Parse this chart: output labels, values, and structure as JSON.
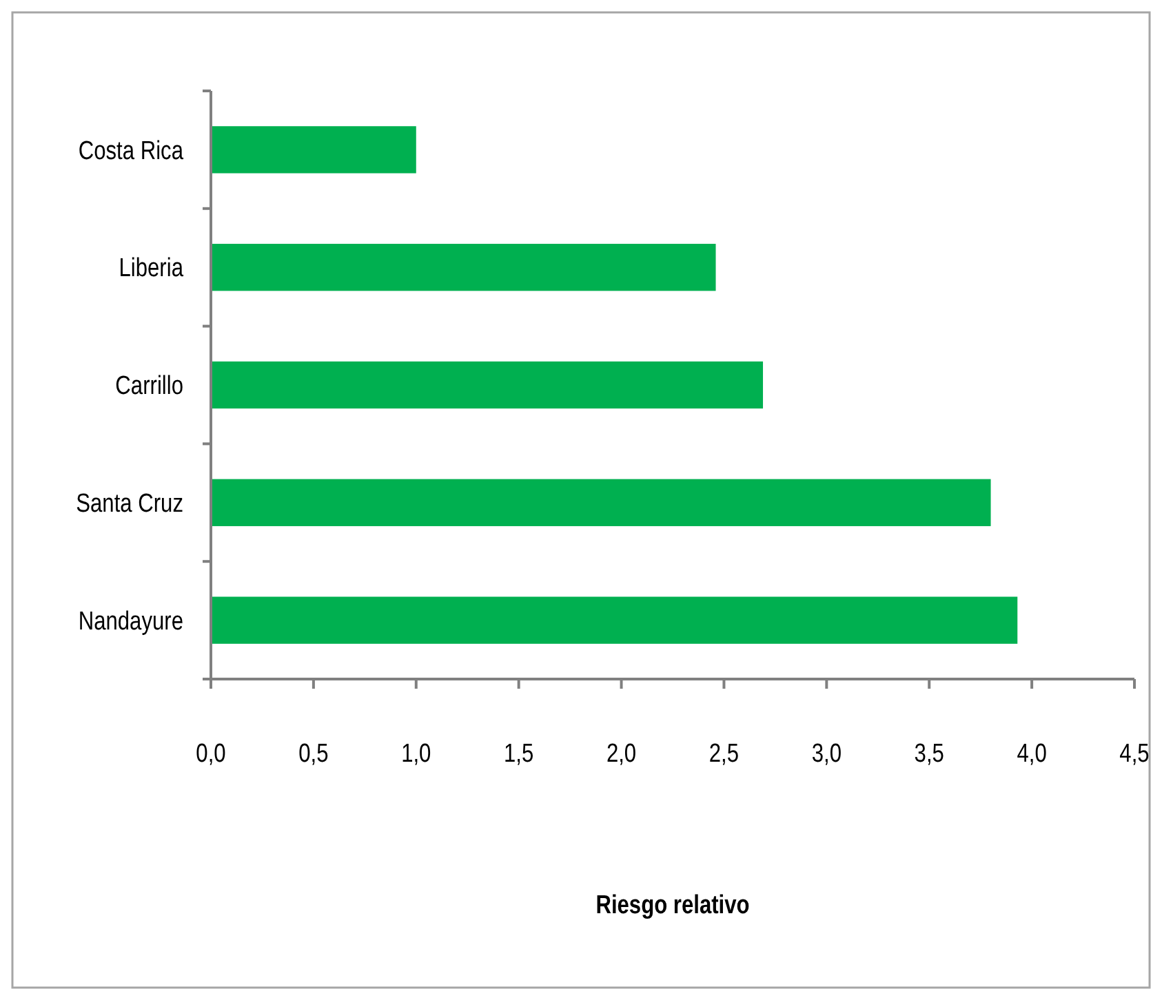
{
  "chart_data": {
    "type": "bar",
    "orientation": "horizontal",
    "xlabel": "Riesgo relativo",
    "categories": [
      "Costa Rica",
      "Liberia",
      "Carrillo",
      "Santa Cruz",
      "Nandayure"
    ],
    "values": [
      1.0,
      2.46,
      2.69,
      3.8,
      3.93
    ],
    "color": "#00b050",
    "xlim": [
      0,
      4.5
    ],
    "xticks": [
      {
        "value": 0,
        "label": "0,0"
      },
      {
        "value": 0.5,
        "label": "0,5"
      },
      {
        "value": 1,
        "label": "1,0"
      },
      {
        "value": 1.5,
        "label": "1,5"
      },
      {
        "value": 2,
        "label": "2,0"
      },
      {
        "value": 2.5,
        "label": "2,5"
      },
      {
        "value": 3,
        "label": "3,0"
      },
      {
        "value": 3.5,
        "label": "3,5"
      },
      {
        "value": 4,
        "label": "4,0"
      },
      {
        "value": 4.5,
        "label": "4,5"
      }
    ],
    "grid": false
  }
}
